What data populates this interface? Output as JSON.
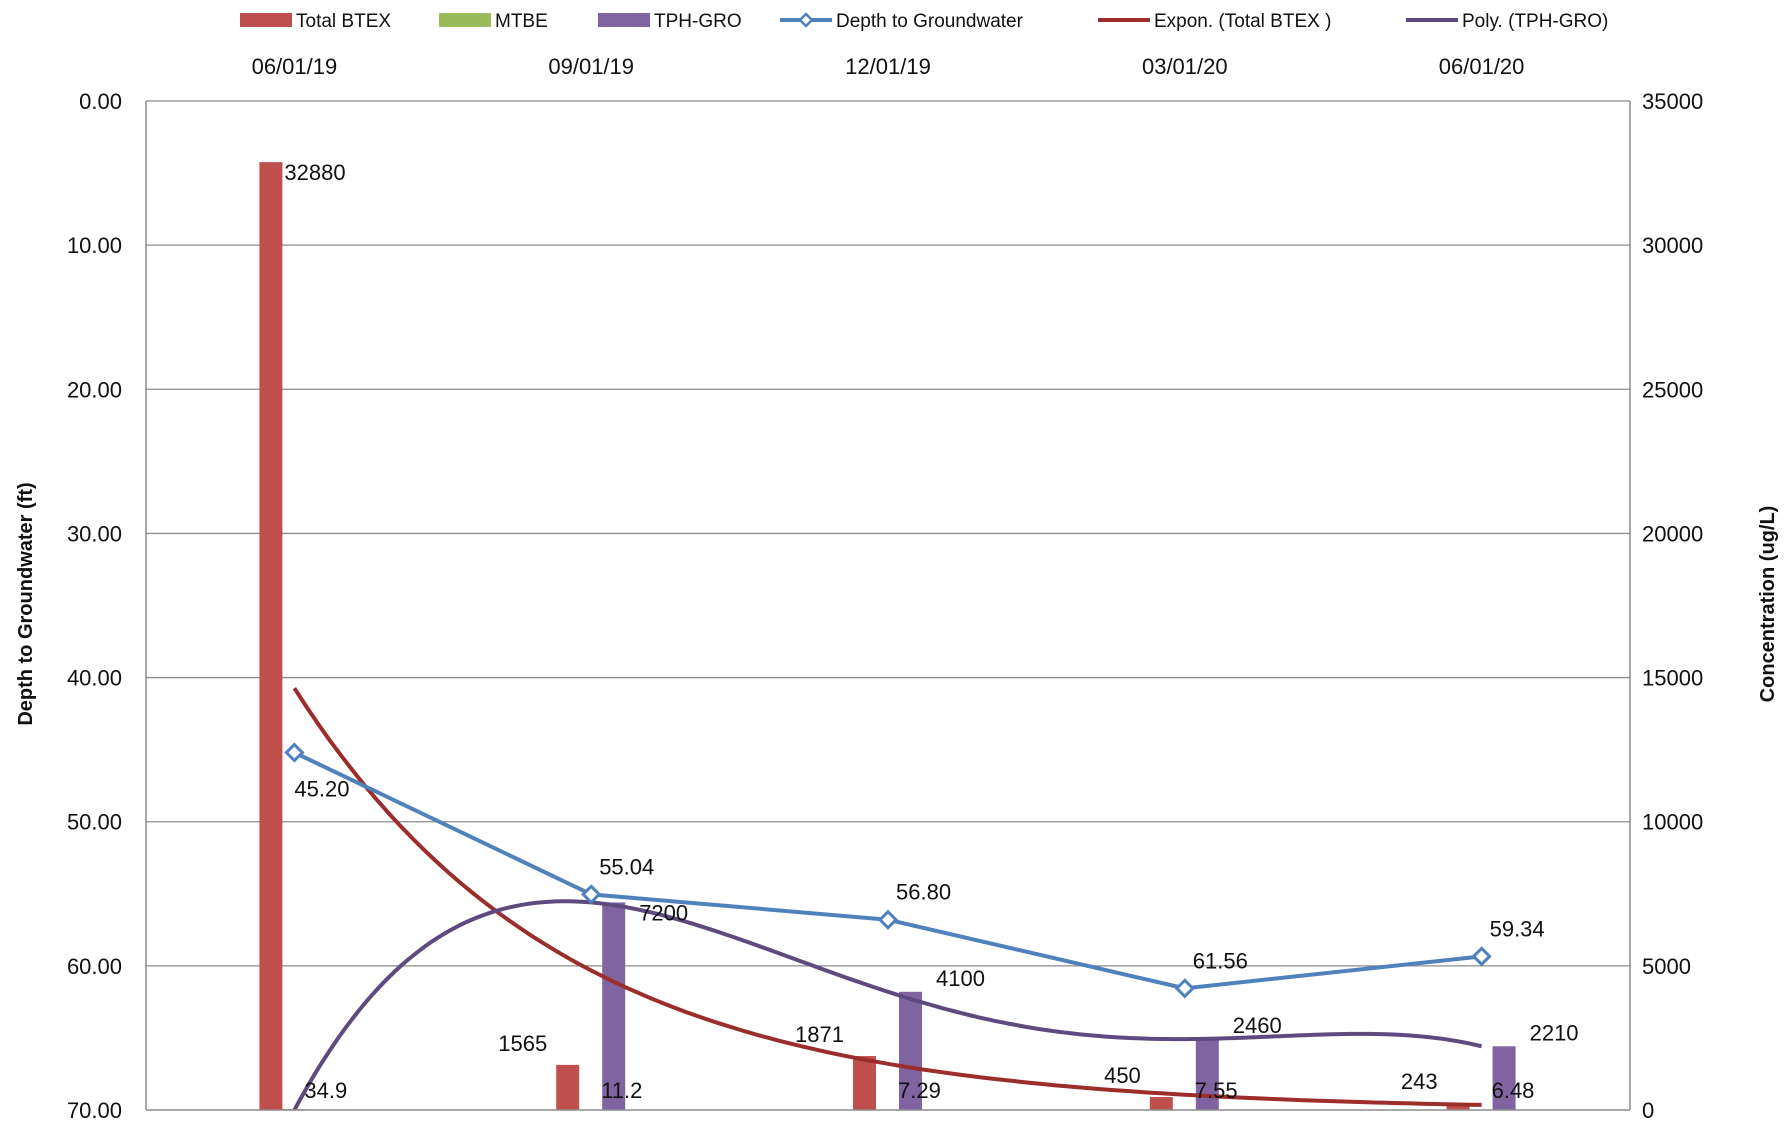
{
  "chart_data": {
    "type": "bar",
    "categories": [
      "06/01/19",
      "09/01/19",
      "12/01/19",
      "03/01/20",
      "06/01/20"
    ],
    "series": [
      {
        "name": "Total BTEX",
        "type": "bar",
        "axis": "right",
        "color": "#c0504d",
        "values": [
          32880,
          1565,
          1871,
          450,
          243
        ]
      },
      {
        "name": "MTBE",
        "type": "bar",
        "axis": "right",
        "color": "#9bbb59",
        "values": [
          34.9,
          11.2,
          7.29,
          7.55,
          6.48
        ]
      },
      {
        "name": "TPH-GRO",
        "type": "bar",
        "axis": "right",
        "color": "#8064a2",
        "values": [
          0,
          7200,
          4100,
          2460,
          2210
        ]
      },
      {
        "name": "Depth to Groundwater",
        "type": "line",
        "axis": "left",
        "color": "#4f81bd",
        "marker": "diamond",
        "values": [
          45.2,
          55.04,
          56.8,
          61.56,
          59.34
        ]
      },
      {
        "name": "Expon. (Total BTEX )",
        "type": "trendline",
        "axis": "right",
        "color": "#9b2d2a"
      },
      {
        "name": "Poly. (TPH-GRO)",
        "type": "trendline",
        "axis": "right",
        "color": "#5f4a80"
      }
    ],
    "data_labels": {
      "total_btex": [
        "32880",
        "1565",
        "1871",
        "450",
        "243"
      ],
      "mtbe": [
        "34.9",
        "11.2",
        "7.29",
        "7.55",
        "6.48"
      ],
      "tph_gro": [
        "",
        "7200",
        "4100",
        "2460",
        "2210"
      ],
      "depth": [
        "45.20",
        "55.04",
        "56.80",
        "61.56",
        "59.34"
      ]
    },
    "ylabel_left": "Depth to Groundwater (ft)",
    "ylabel_right": "Concentration (ug/L)",
    "ylim_left": [
      0,
      70
    ],
    "ylim_right": [
      0,
      35000
    ],
    "left_reversed": true,
    "left_ticks": [
      "0.00",
      "10.00",
      "20.00",
      "30.00",
      "40.00",
      "50.00",
      "60.00",
      "70.00"
    ],
    "right_ticks": [
      "35000",
      "30000",
      "25000",
      "20000",
      "15000",
      "10000",
      "5000",
      "0"
    ],
    "x_axis_position": "top",
    "grid": true,
    "legend_position": "top"
  }
}
